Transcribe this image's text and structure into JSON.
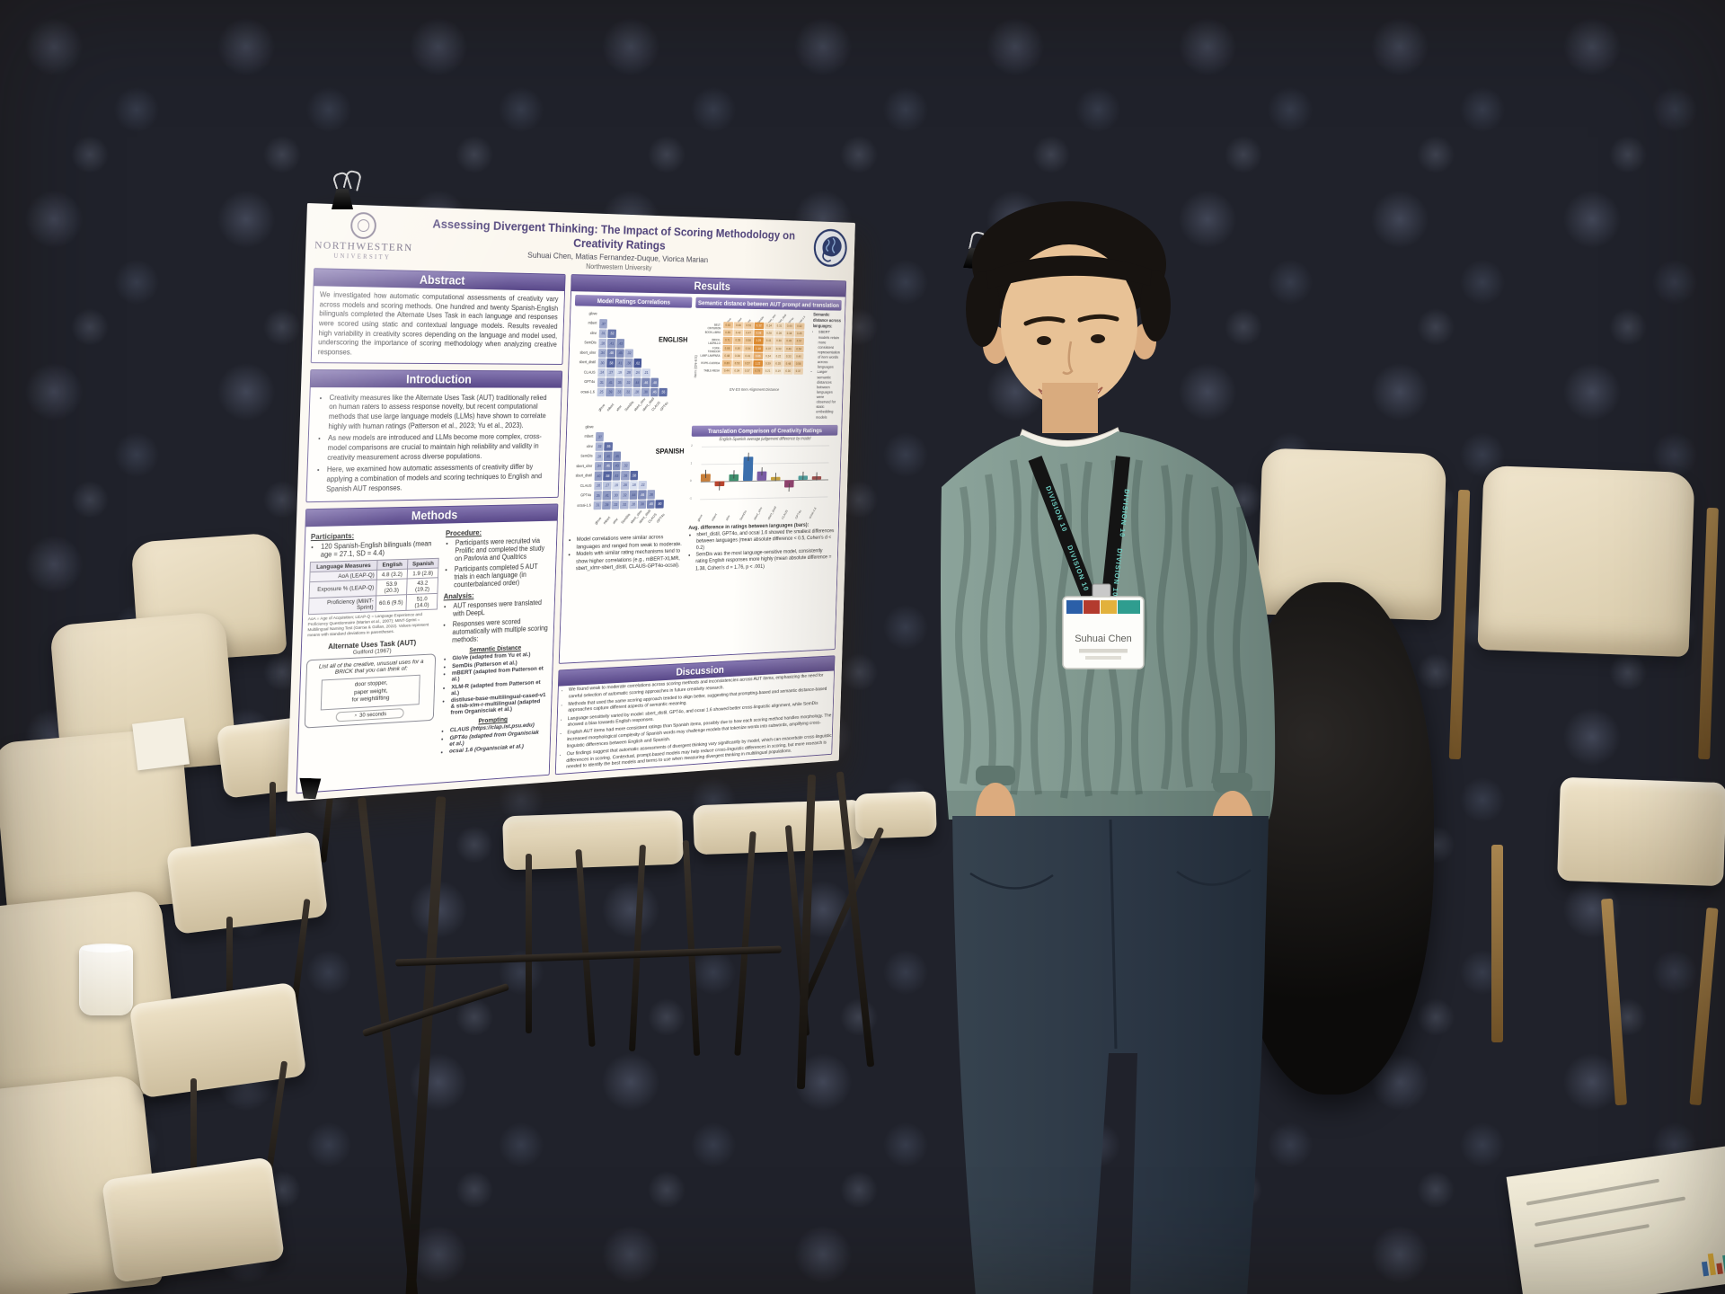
{
  "palette": {
    "poster_purple": "#5e4f92",
    "header_band": "#6a5a9e",
    "wall_beige": "#b7aa96",
    "carpet_dark": "#20222b",
    "sweater_teal": "#7f978e",
    "chair_cream": "#ead9bd",
    "lanyard_teal": "#6fd0c4"
  },
  "poster": {
    "logo": {
      "line1": "NORTHWESTERN",
      "line2": "UNIVERSITY"
    },
    "title": "Assessing Divergent Thinking: The Impact of Scoring Methodology on Creativity Ratings",
    "authors": "Suhuai Chen, Matias Fernandez-Duque, Viorica Marian",
    "affiliation": "Northwestern University",
    "abstract": {
      "heading": "Abstract",
      "body": "We investigated how automatic computational assessments of creativity vary across models and scoring methods. One hundred and twenty Spanish-English bilinguals completed the Alternate Uses Task in each language and responses were scored using static and contextual language models. Results revealed high variability in creativity scores depending on the language and model used, underscoring the importance of scoring methodology when analyzing creative responses."
    },
    "introduction": {
      "heading": "Introduction",
      "bullets": [
        "Creativity measures like the Alternate Uses Task (AUT) traditionally relied on human raters to assess response novelty, but recent computational methods that use large language models (LLMs) have shown to correlate highly with human ratings (Patterson et al., 2023; Yu et al., 2023).",
        "As new models are introduced and LLMs become more complex, cross-model comparisons are crucial to maintain high reliability and validity in creativity measurement across diverse populations.",
        "Here, we examined how automatic assessments of creativity differ by applying a combination of models and scoring techniques to English and Spanish AUT responses."
      ]
    },
    "methods": {
      "heading": "Methods",
      "participants_heading": "Participants:",
      "participants_bullet": "120 Spanish-English bilinguals (mean age = 27.1, SD = 4.4)",
      "table": {
        "headers": [
          "Language Measures",
          "English",
          "Spanish"
        ],
        "rows": [
          [
            "AoA (LEAP-Q)",
            "4.8 (3.2)",
            "1.9 (2.8)"
          ],
          [
            "Exposure % (LEAP-Q)",
            "53.9 (20.3)",
            "43.2 (19.2)"
          ],
          [
            "Proficiency (MINT-Sprint)",
            "60.6 (9.5)",
            "51.0 (14.0)"
          ]
        ]
      },
      "table_note": "AoA = Age of Acquisition; LEAP-Q = Language Experience and Proficiency Questionnaire (Marian et al., 2007); MINT-Sprint = Multilingual Naming Test (Garcia & Gollan, 2022). Values represent means with standard deviations in parentheses.",
      "aut": {
        "title": "Alternate Uses Task (AUT)",
        "subtitle": "Guilford (1967)",
        "prompt": "List all of the creative, unusual uses for a BRICK that you can think of:",
        "examples": [
          "door stopper,",
          "paper weight,",
          "for weightlifting"
        ],
        "timer_label": "30 seconds"
      },
      "procedure_heading": "Procedure:",
      "procedure_bullets": [
        "Participants were recruited via Prolific and completed the study on Pavlovia and Qualtrics",
        "Participants completed 5 AUT trials in each language (in counterbalanced order)"
      ],
      "analysis_heading": "Analysis:",
      "analysis_bullets": [
        "AUT responses were translated with DeepL",
        "Responses were scored automatically with multiple scoring methods:"
      ],
      "semantic_label": "Semantic Distance",
      "semantic_models": [
        "GloVe (adapted from Yu et al.)",
        "SemDis (Patterson et al.)",
        "mBERT (adapted from Patterson et al.)",
        "XLM-R (adapted from Patterson et al.)",
        "distiluse-base-multilingual-cased-v1 & stsb-xlm-r-multilingual (adapted from Organisciak et al.)"
      ],
      "prompting_label": "Prompting",
      "prompting_models": [
        "CLAUS (https://clap.ist.psu.edu)",
        "GPT4o (adapted from Organisciak et al.)",
        "ocsai 1.6 (Organisciak et al.)"
      ]
    },
    "results": {
      "heading": "Results",
      "corr_header": "Model Ratings Correlations",
      "matrix_bullets": [
        "Model correlations were similar across languages and ranged from weak to moderate.",
        "Models with similar rating mechanisms tend to show higher correlations (e.g., mBERT-XLMR, sbert_xlmr-sbert_distil, CLAUS-GPT4o-ocsai)."
      ],
      "semdist_header": "Semantic distance between AUT prompt and translation",
      "semdist_axis": "EN-ES Item Alignment Distance",
      "semdist_ylabel": "Item (EN-ES)",
      "notes_heading": "Semantic distance across languages:",
      "notes": [
        "SBERT models retain more consistent representation of item words across languages",
        "Larger semantic distances between languages were observed for static embedding models"
      ],
      "trans_header": "Translation Comparison of Creativity Ratings",
      "trans_subtitle": "English-Spanish average judgement difference by model",
      "avg_heading": "Avg. difference in ratings between languages (bars):",
      "avg_bullets": [
        "sbert_distil, GPT4o, and ocsai 1.6 showed the smallest differences between languages (mean absolute difference < 0.5, Cohen's d < 0.2)",
        "SemDis was the most language-sensitive model, consistently rating English responses more highly (mean absolute difference = 1.38, Cohen's d = 1.76, p < .001)"
      ]
    },
    "discussion": {
      "heading": "Discussion",
      "bullets": [
        "We found weak to moderate correlations across scoring methods and inconsistencies across AUT items, emphasizing the need for careful selection of automatic scoring approaches in future creativity research.",
        "Methods that used the same scoring approach tended to align better, suggesting that prompting-based and semantic distance-based approaches capture different aspects of semantic meaning.",
        "Language sensitivity varied by model: sbert_distil, GPT4o, and ocsai 1.6 showed better cross-linguistic alignment, while SemDis showed a bias towards English responses.",
        "English AUT items had more consistent ratings than Spanish items, possibly due to how each scoring method handles morphology. The increased morphological complexity of Spanish words may challenge models that tokenize words into subwords, amplifying cross-linguistic differences between English and Spanish.",
        "Our findings suggest that automatic assessments of divergent thinking vary significantly by model, which can exacerbate cross-linguistic differences in scoring. Contextual, prompt-based models may help reduce cross-linguistic differences in scoring, but more research is needed to identify the best models and terms to use when measuring divergent thinking in multilingual populations."
      ]
    }
  },
  "person": {
    "badge_name": "Suhuai Chen",
    "lanyard_text": "DIVISION 10"
  },
  "chart_data": [
    {
      "type": "heatmap",
      "variant": "lower-triangle",
      "title": "ENGLISH",
      "labels": [
        "glove",
        "mbert",
        "xlmr",
        "SemDis",
        "sbert_xlmr",
        "sbert_distil",
        "CLAUS",
        "GPT4o",
        "ocsai-1.6"
      ],
      "matrix": [
        [
          0.37
        ],
        [
          0.31,
          0.52
        ],
        [
          0.28,
          0.41,
          0.43
        ],
        [
          0.34,
          0.48,
          0.45,
          0.32
        ],
        [
          0.3,
          0.58,
          0.41,
          0.38,
          0.62
        ],
        [
          0.24,
          0.27,
          0.19,
          0.28,
          0.24,
          0.21
        ],
        [
          0.31,
          0.41,
          0.35,
          0.32,
          0.44,
          0.46,
          0.48
        ],
        [
          0.25,
          0.39,
          0.33,
          0.32,
          0.28,
          0.38,
          0.46,
          0.55
        ]
      ]
    },
    {
      "type": "heatmap",
      "variant": "lower-triangle",
      "title": "SPANISH",
      "labels": [
        "glove",
        "mbert",
        "xlmr",
        "SemDis",
        "sbert_xlmr",
        "sbert_distil",
        "CLAUS",
        "GPT4o",
        "ocsai-1.6"
      ],
      "matrix": [
        [
          0.37
        ],
        [
          0.32,
          0.55
        ],
        [
          0.28,
          0.45,
          0.45
        ],
        [
          0.34,
          0.46,
          0.43,
          0.32
        ],
        [
          0.4,
          0.58,
          0.43,
          0.38,
          0.58
        ],
        [
          0.28,
          0.27,
          0.19,
          0.28,
          0.18,
          0.22
        ],
        [
          0.35,
          0.41,
          0.3,
          0.32,
          0.44,
          0.46,
          0.38
        ],
        [
          0.31,
          0.39,
          0.33,
          0.32,
          0.28,
          0.38,
          0.48,
          0.6
        ]
      ]
    },
    {
      "type": "heatmap",
      "variant": "grid",
      "title": "Semantic distance between AUT prompt and translation",
      "xlabel": "EN-ES Item Alignment Distance",
      "ylabel": "Item (EN-ES)",
      "col_labels": [
        "glove",
        "mbert",
        "xlmr",
        "SemDis",
        "sbert_xlmr",
        "sbert_distil",
        "GPT4o",
        "ocsai-1.6"
      ],
      "row_labels": [
        "BELT-CINTURON",
        "BOOK-LIBRO",
        "BRICK-LADRILLO",
        "FORK-TENEDOR",
        "LAMP-LAMPARA",
        "ROPE-CUERDA",
        "TABLE-MESA"
      ],
      "values": [
        [
          0.62,
          0.48,
          0.51,
          1.12,
          0.34,
          0.31,
          0.44,
          0.52
        ],
        [
          0.55,
          0.42,
          0.47,
          0.98,
          0.28,
          0.26,
          0.38,
          0.45
        ],
        [
          0.71,
          0.55,
          0.58,
          1.25,
          0.41,
          0.36,
          0.49,
          0.57
        ],
        [
          0.66,
          0.5,
          0.54,
          1.18,
          0.37,
          0.33,
          0.46,
          0.54
        ],
        [
          0.48,
          0.38,
          0.41,
          0.86,
          0.24,
          0.22,
          0.33,
          0.4
        ],
        [
          0.69,
          0.53,
          0.57,
          1.22,
          0.39,
          0.35,
          0.48,
          0.56
        ],
        [
          0.44,
          0.34,
          0.37,
          0.79,
          0.21,
          0.19,
          0.3,
          0.37
        ]
      ]
    },
    {
      "type": "bar",
      "title": "Translation Comparison of Creativity Ratings",
      "categories": [
        "glove",
        "mbert",
        "xlmr",
        "SemDis",
        "sbert_xlmr",
        "sbert_distil",
        "CLAUS",
        "GPT4o",
        "ocsai-1.6"
      ],
      "series": [
        {
          "name": "EN-ES difference",
          "values": [
            0.42,
            -0.28,
            0.35,
            1.38,
            0.52,
            0.18,
            -0.45,
            0.22,
            0.15
          ]
        }
      ],
      "colors": [
        "#c87f3a",
        "#b8452f",
        "#3f8f6e",
        "#3a6fae",
        "#7a5ba8",
        "#c8a23a",
        "#8f3f6e",
        "#4aa0a0",
        "#a04a4a"
      ],
      "ylim": [
        -1,
        2
      ]
    }
  ]
}
